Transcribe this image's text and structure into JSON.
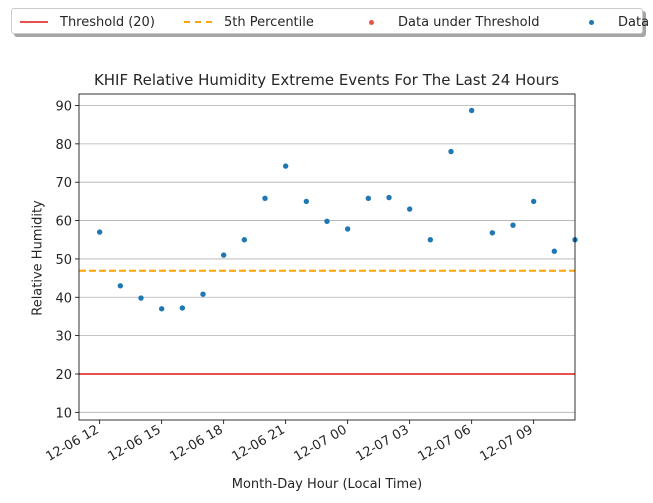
{
  "chart_data": {
    "type": "scatter",
    "title": "KHIF Relative Humidity Extreme Events For The Last 24 Hours",
    "xlabel": "Month-Day Hour (Local Time)",
    "ylabel": "Relative Humidity",
    "ylim": [
      8,
      93
    ],
    "yticks": [
      10,
      20,
      30,
      40,
      50,
      60,
      70,
      80,
      90
    ],
    "xlim": [
      "12-06 11:00",
      "12-07 11:00"
    ],
    "x_tick_labels": [
      "12-06 12",
      "12-06 15",
      "12-06 18",
      "12-06 21",
      "12-07 00",
      "12-07 03",
      "12-07 06",
      "12-07 09"
    ],
    "grid": "horizontal",
    "legend_position": "top, outside plot",
    "threshold": {
      "name": "Threshold (20)",
      "value": 20,
      "color": "#e8514b"
    },
    "percentile": {
      "name": "5th Percentile",
      "value": 46.9,
      "color": "#ffa500"
    },
    "series": [
      {
        "name": "Data under Threshold",
        "color": "#e8514b",
        "x": [],
        "y": []
      },
      {
        "name": "Data",
        "color": "#1f77b4",
        "x": [
          "12-06 12:00",
          "12-06 13:00",
          "12-06 14:00",
          "12-06 15:00",
          "12-06 16:00",
          "12-06 17:00",
          "12-06 18:00",
          "12-06 19:00",
          "12-06 20:00",
          "12-06 21:00",
          "12-06 22:00",
          "12-06 23:00",
          "12-07 00:00",
          "12-07 01:00",
          "12-07 02:00",
          "12-07 03:00",
          "12-07 04:00",
          "12-07 05:00",
          "12-07 06:00",
          "12-07 07:00",
          "12-07 08:00",
          "12-07 09:00",
          "12-07 10:00",
          "12-07 11:00"
        ],
        "y": [
          57,
          43,
          39.8,
          37,
          37.2,
          40.8,
          51,
          55,
          65.8,
          74.2,
          65,
          59.8,
          57.8,
          65.8,
          66,
          63,
          55,
          78,
          88.7,
          56.8,
          58.8,
          65,
          52,
          55
        ]
      }
    ]
  }
}
